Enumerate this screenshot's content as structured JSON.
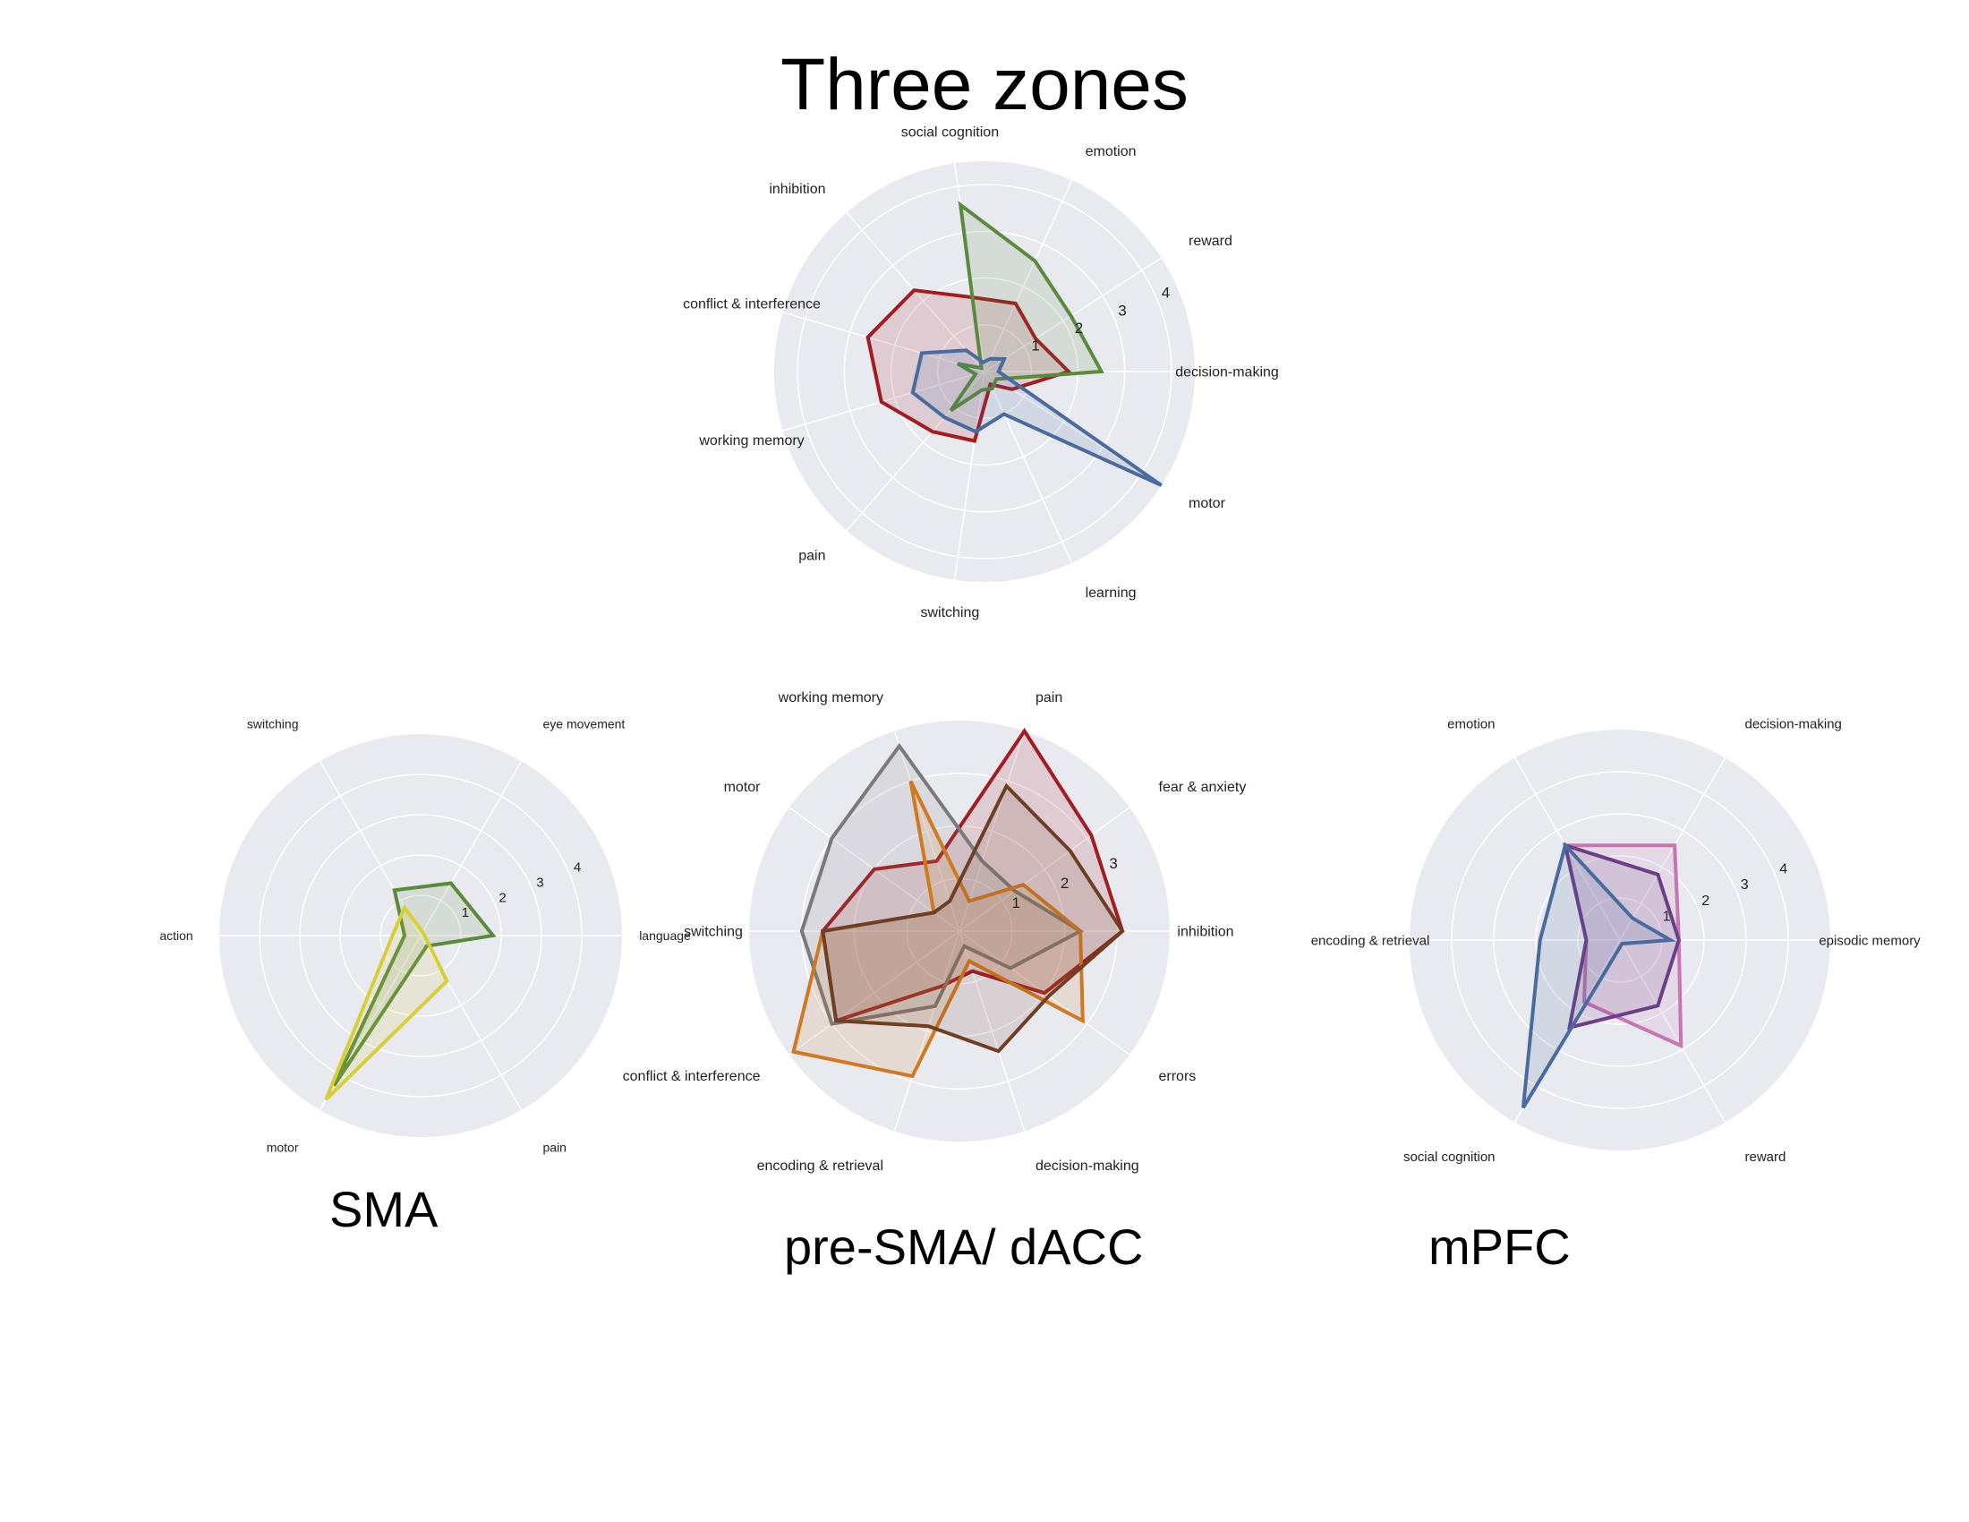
{
  "title": "Three zones",
  "colors": {
    "background": "#ffffff",
    "polar_bg": "#e9e9f0",
    "grid": "#ffffff",
    "red": "#a11d21",
    "green": "#5a8a3c",
    "blue": "#4a6b9e",
    "yellow": "#d6cf3a",
    "gray": "#7a7a7a",
    "orange": "#cf7a22",
    "brown": "#6e3f24",
    "pink": "#c676b0",
    "purple": "#6b3f86"
  },
  "captions": {
    "sma": "SMA",
    "presma": "pre-SMA/ dACC",
    "mpfc": "mPFC"
  },
  "chart_data": [
    {
      "id": "three-zones",
      "type": "radar",
      "title": "Three zones",
      "categories": [
        "decision-making",
        "reward",
        "emotion",
        "social cognition",
        "inhibition",
        "conflict & interference",
        "working memory",
        "pain",
        "switching",
        "learning",
        "motor"
      ],
      "radial_ticks": [
        "1",
        "2",
        "3",
        "4"
      ],
      "rmax": 4.5,
      "series": [
        {
          "color": "red",
          "values": [
            1.8,
            1.3,
            1.6,
            1.6,
            2.3,
            2.6,
            2.3,
            1.7,
            1.5,
            0.3,
            0.7
          ]
        },
        {
          "color": "green",
          "values": [
            2.5,
            2.2,
            2.6,
            3.6,
            0.1,
            0.6,
            0.2,
            1.1,
            0.4,
            0.4,
            0.3
          ]
        },
        {
          "color": "blue",
          "values": [
            0.3,
            0.5,
            0.3,
            0.2,
            0.6,
            1.4,
            1.6,
            1.3,
            1.3,
            1.0,
            4.5
          ]
        }
      ]
    },
    {
      "id": "sma",
      "type": "radar",
      "title": "",
      "categories": [
        "language",
        "eye movement",
        "switching",
        "action",
        "motor",
        "pain"
      ],
      "radial_ticks": [
        "1",
        "2",
        "3",
        "4"
      ],
      "rmax": 5,
      "series": [
        {
          "color": "green",
          "values": [
            1.8,
            1.5,
            1.3,
            0.4,
            4.3,
            0.3
          ]
        },
        {
          "color": "yellow",
          "values": [
            0.1,
            0.1,
            0.8,
            0.7,
            4.7,
            1.3
          ]
        }
      ]
    },
    {
      "id": "pre-sma-dacc",
      "type": "radar",
      "title": "",
      "categories": [
        "inhibition",
        "fear & anxiety",
        "pain",
        "working memory",
        "motor",
        "switching",
        "conflict & interference",
        "encoding & retrieval",
        "decision-making",
        "errors"
      ],
      "radial_ticks": [
        "1",
        "2",
        "3"
      ],
      "rmax": 4,
      "series": [
        {
          "color": "red",
          "values": [
            3.1,
            3.1,
            4.0,
            1.4,
            2.0,
            2.6,
            2.9,
            1.1,
            0.8,
            2.0
          ]
        },
        {
          "color": "gray",
          "values": [
            2.3,
            1.3,
            1.4,
            3.7,
            3.0,
            3.0,
            3.0,
            1.5,
            0.3,
            1.2
          ]
        },
        {
          "color": "orange",
          "values": [
            2.3,
            1.5,
            0.6,
            3.0,
            0.6,
            2.6,
            3.9,
            2.9,
            0.6,
            2.9
          ]
        },
        {
          "color": "brown",
          "values": [
            3.1,
            2.6,
            2.9,
            0.6,
            0.6,
            2.6,
            2.9,
            1.9,
            2.4,
            2.1
          ]
        }
      ]
    },
    {
      "id": "mpfc",
      "type": "radar",
      "title": "",
      "categories": [
        "episodic memory",
        "decision-making",
        "emotion",
        "encoding & retrieval",
        "social cognition",
        "reward"
      ],
      "radial_ticks": [
        "1",
        "2",
        "3",
        "4"
      ],
      "rmax": 5,
      "series": [
        {
          "color": "pink",
          "values": [
            1.4,
            2.6,
            2.6,
            0.8,
            1.7,
            2.9
          ]
        },
        {
          "color": "purple",
          "values": [
            1.4,
            1.8,
            2.6,
            0.8,
            2.4,
            1.8
          ]
        },
        {
          "color": "blue",
          "values": [
            1.2,
            0.6,
            2.6,
            1.9,
            4.6,
            0.1
          ]
        }
      ]
    }
  ]
}
